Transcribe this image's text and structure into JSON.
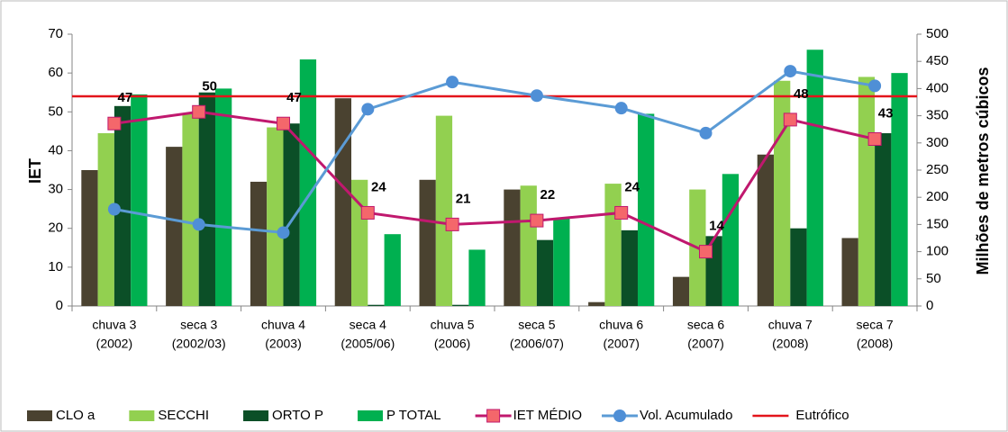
{
  "chart_data": {
    "type": "combo",
    "y_label": "IET",
    "y2_label": "Milhões de metros cúbicos",
    "categories": [
      [
        "chuva 3",
        "(2002)"
      ],
      [
        "seca 3",
        "(2002/03)"
      ],
      [
        "chuva 4",
        "(2003)"
      ],
      [
        "seca 4",
        "(2005/06)"
      ],
      [
        "chuva 5",
        "(2006)"
      ],
      [
        "seca 5",
        "(2006/07)"
      ],
      [
        "chuva 6",
        "(2007)"
      ],
      [
        "seca 6",
        "(2007)"
      ],
      [
        "chuva 7",
        "(2008)"
      ],
      [
        "seca 7",
        "(2008)"
      ]
    ],
    "ylim": [
      0,
      70
    ],
    "yticks": [
      0,
      10,
      20,
      30,
      40,
      50,
      60,
      70
    ],
    "y2lim": [
      0,
      500
    ],
    "y2ticks": [
      0,
      50,
      100,
      150,
      200,
      250,
      300,
      350,
      400,
      450,
      500
    ],
    "series": [
      {
        "name": "CLO a",
        "type": "bar",
        "color": "#4a4230",
        "values": [
          35,
          41,
          32,
          53.5,
          32.5,
          30,
          1,
          7.5,
          39,
          17.5
        ]
      },
      {
        "name": "SECCHI",
        "type": "bar",
        "color": "#92d050",
        "values": [
          44.5,
          49.5,
          46,
          32.5,
          49,
          31,
          31.5,
          30,
          58,
          59
        ]
      },
      {
        "name": "ORTO P",
        "type": "bar",
        "color": "#0b4f27",
        "values": [
          51.5,
          55,
          47,
          0.3,
          0.3,
          17,
          19.5,
          18,
          20,
          44.5
        ]
      },
      {
        "name": "P TOTAL",
        "type": "bar",
        "color": "#00b050",
        "values": [
          54.5,
          56,
          63.5,
          18.5,
          14.5,
          22.5,
          49.5,
          34,
          66,
          60
        ]
      },
      {
        "name": "IET MÉDIO",
        "type": "line",
        "color": "#c0186e",
        "marker_color": "#f4676b",
        "marker": "square",
        "values": [
          47,
          50,
          47,
          24,
          21,
          22,
          24,
          14,
          48,
          43
        ]
      },
      {
        "name": "Vol. Acumulado",
        "type": "line",
        "axis": "y2",
        "color": "#5b9bd5",
        "marker_color": "#4f8fd6",
        "marker": "circle",
        "values": [
          178,
          150,
          135,
          362,
          412,
          387,
          364,
          318,
          432,
          405
        ]
      }
    ],
    "reference": {
      "name": "Eutrófico",
      "value": 54,
      "color": "#e3141b"
    }
  }
}
